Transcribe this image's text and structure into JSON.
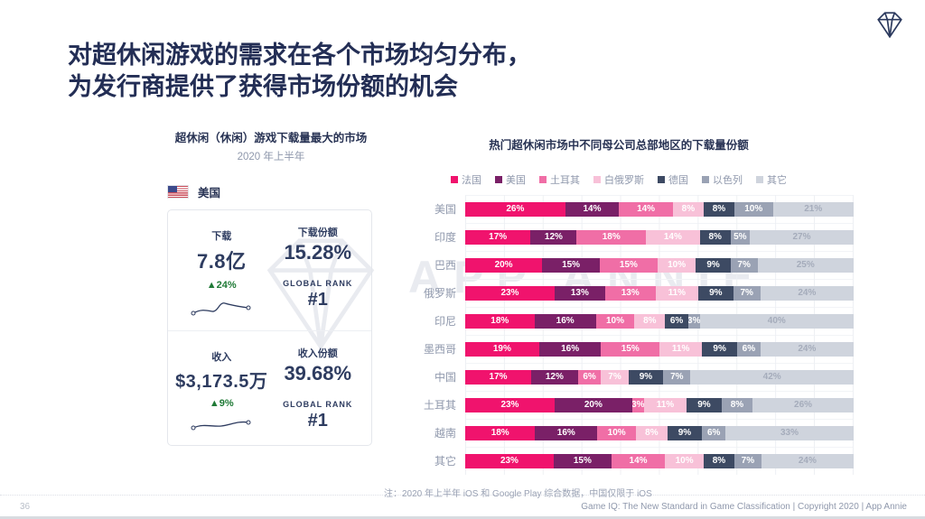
{
  "slide": {
    "title_line1": "对超休闲游戏的需求在各个市场均匀分布，",
    "title_line2": "为发行商提供了获得市场份额的机会",
    "watermark_text": "APP ANNIE",
    "page_number": "36",
    "footer_right": "Game IQ: The New Standard in Game Classification  |  Copyright 2020  |  App Annie"
  },
  "left_panel": {
    "title": "超休闲（休闲）游戏下载量最大的市场",
    "subtitle": "2020 年上半年",
    "country": "美国",
    "downloads": {
      "label": "下载",
      "value": "7.8亿",
      "change": "▲24%",
      "share_label": "下载份额",
      "share": "15.28%",
      "rank_label": "GLOBAL RANK",
      "rank": "#1"
    },
    "revenue": {
      "label": "收入",
      "value": "$3,173.5万",
      "change": "▲9%",
      "share_label": "收入份额",
      "share": "39.68%",
      "rank_label": "GLOBAL RANK",
      "rank": "#1"
    }
  },
  "right_panel": {
    "title": "热门超休闲市场中不同母公司总部地区的下载量份额",
    "note": "注：2020 年上半年 iOS 和 Google Play 综合数据，中国仅限于 iOS"
  },
  "chart_data": {
    "type": "bar",
    "stacked": true,
    "orientation": "horizontal",
    "unit": "%",
    "xlim": [
      0,
      100
    ],
    "grid": true,
    "legend_position": "top",
    "value_labels_shown": true,
    "categories": [
      "美国",
      "印度",
      "巴西",
      "俄罗斯",
      "印尼",
      "墨西哥",
      "中国",
      "土耳其",
      "越南",
      "其它"
    ],
    "series": [
      {
        "name": "法国",
        "color": "#f0136d",
        "values": [
          26,
          17,
          20,
          23,
          18,
          19,
          17,
          23,
          18,
          23
        ]
      },
      {
        "name": "美国",
        "color": "#7a2067",
        "values": [
          14,
          12,
          15,
          13,
          16,
          16,
          12,
          20,
          16,
          15
        ]
      },
      {
        "name": "土耳其",
        "color": "#f06ea6",
        "values": [
          14,
          18,
          15,
          13,
          10,
          15,
          6,
          3,
          10,
          14
        ]
      },
      {
        "name": "白俄罗斯",
        "color": "#f8c1d8",
        "values": [
          8,
          14,
          10,
          11,
          8,
          11,
          7,
          11,
          8,
          10
        ]
      },
      {
        "name": "德国",
        "color": "#3d4a63",
        "values": [
          8,
          8,
          9,
          9,
          6,
          9,
          9,
          9,
          9,
          8
        ]
      },
      {
        "name": "以色列",
        "color": "#9aa2b4",
        "values": [
          10,
          5,
          7,
          7,
          3,
          6,
          7,
          8,
          6,
          7
        ]
      },
      {
        "name": "其它",
        "color": "#cfd4dd",
        "values": [
          21,
          27,
          25,
          24,
          40,
          24,
          42,
          26,
          33,
          24
        ]
      }
    ],
    "last_series_label_color": "#a5acbb"
  },
  "colors": {
    "title_navy": "#232e55",
    "text_gray": "#8f98ac",
    "positive_green": "#1f7a36",
    "accent_pink": "#f0136d"
  }
}
